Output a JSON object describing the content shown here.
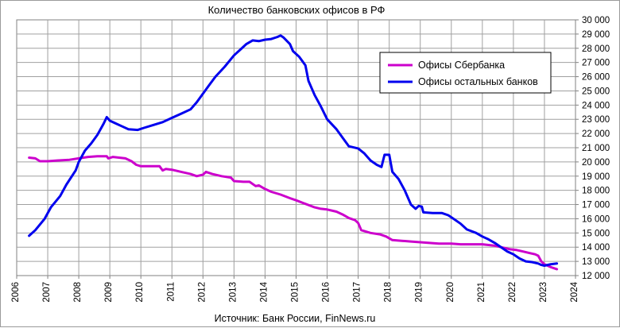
{
  "chart_data": {
    "type": "line",
    "title": "Количество банковских офисов в РФ",
    "source": "Источник: Банк России, FinNews.ru",
    "xlabel": "",
    "ylabel": "",
    "x_ticks": [
      "2006",
      "2007",
      "2008",
      "2009",
      "2010",
      "2011",
      "2012",
      "2013",
      "2014",
      "2015",
      "2016",
      "2017",
      "2018",
      "2019",
      "2020",
      "2021",
      "2022",
      "2023",
      "2024"
    ],
    "y_ticks": [
      "12 000",
      "13 000",
      "14 000",
      "15 000",
      "16 000",
      "17 000",
      "18 000",
      "19 000",
      "20 000",
      "21 000",
      "22 000",
      "23 000",
      "24 000",
      "25 000",
      "26 000",
      "27 000",
      "28 000",
      "29 000",
      "30 000"
    ],
    "xlim": [
      2006,
      2024
    ],
    "ylim": [
      12000,
      30000
    ],
    "y_axis_position": "right",
    "grid": true,
    "legend_position": "top-right",
    "series": [
      {
        "name": "Офисы Сбербанка",
        "color": "#cc00cc",
        "points": [
          [
            2006.4,
            20300
          ],
          [
            2006.6,
            20250
          ],
          [
            2006.75,
            20050
          ],
          [
            2007.0,
            20050
          ],
          [
            2007.3,
            20100
          ],
          [
            2007.7,
            20150
          ],
          [
            2008.0,
            20250
          ],
          [
            2008.3,
            20350
          ],
          [
            2008.6,
            20400
          ],
          [
            2008.9,
            20400
          ],
          [
            2008.95,
            20250
          ],
          [
            2009.1,
            20350
          ],
          [
            2009.5,
            20250
          ],
          [
            2009.7,
            20050
          ],
          [
            2009.85,
            19800
          ],
          [
            2010.0,
            19700
          ],
          [
            2010.3,
            19700
          ],
          [
            2010.6,
            19700
          ],
          [
            2010.7,
            19400
          ],
          [
            2010.8,
            19500
          ],
          [
            2011.0,
            19450
          ],
          [
            2011.3,
            19300
          ],
          [
            2011.6,
            19150
          ],
          [
            2011.8,
            19000
          ],
          [
            2012.0,
            19100
          ],
          [
            2012.1,
            19300
          ],
          [
            2012.3,
            19150
          ],
          [
            2012.6,
            19000
          ],
          [
            2012.9,
            18900
          ],
          [
            2013.0,
            18650
          ],
          [
            2013.3,
            18600
          ],
          [
            2013.5,
            18600
          ],
          [
            2013.7,
            18300
          ],
          [
            2013.8,
            18350
          ],
          [
            2014.0,
            18100
          ],
          [
            2014.2,
            17900
          ],
          [
            2014.5,
            17700
          ],
          [
            2014.8,
            17450
          ],
          [
            2015.0,
            17300
          ],
          [
            2015.3,
            17050
          ],
          [
            2015.6,
            16800
          ],
          [
            2015.8,
            16700
          ],
          [
            2016.0,
            16650
          ],
          [
            2016.3,
            16500
          ],
          [
            2016.5,
            16300
          ],
          [
            2016.7,
            16050
          ],
          [
            2016.9,
            15900
          ],
          [
            2017.0,
            15700
          ],
          [
            2017.1,
            15200
          ],
          [
            2017.4,
            15000
          ],
          [
            2017.7,
            14900
          ],
          [
            2017.9,
            14750
          ],
          [
            2018.1,
            14500
          ],
          [
            2018.4,
            14450
          ],
          [
            2018.7,
            14400
          ],
          [
            2019.0,
            14350
          ],
          [
            2019.3,
            14300
          ],
          [
            2019.6,
            14250
          ],
          [
            2020.0,
            14250
          ],
          [
            2020.3,
            14200
          ],
          [
            2020.6,
            14200
          ],
          [
            2021.0,
            14200
          ],
          [
            2021.2,
            14150
          ],
          [
            2021.4,
            14100
          ],
          [
            2021.6,
            14000
          ],
          [
            2021.9,
            13850
          ],
          [
            2022.1,
            13800
          ],
          [
            2022.3,
            13700
          ],
          [
            2022.5,
            13600
          ],
          [
            2022.7,
            13500
          ],
          [
            2022.8,
            13400
          ],
          [
            2022.9,
            13000
          ],
          [
            2023.0,
            12800
          ],
          [
            2023.2,
            12600
          ],
          [
            2023.4,
            12450
          ]
        ]
      },
      {
        "name": "Офисы остальных  банков",
        "color": "#0000ee",
        "points": [
          [
            2006.4,
            14800
          ],
          [
            2006.6,
            15200
          ],
          [
            2006.9,
            16000
          ],
          [
            2007.1,
            16800
          ],
          [
            2007.4,
            17600
          ],
          [
            2007.6,
            18400
          ],
          [
            2007.9,
            19400
          ],
          [
            2008.0,
            20000
          ],
          [
            2008.2,
            20800
          ],
          [
            2008.4,
            21300
          ],
          [
            2008.6,
            21900
          ],
          [
            2008.8,
            22700
          ],
          [
            2008.9,
            23150
          ],
          [
            2009.0,
            22900
          ],
          [
            2009.2,
            22700
          ],
          [
            2009.4,
            22500
          ],
          [
            2009.6,
            22300
          ],
          [
            2009.9,
            22250
          ],
          [
            2010.1,
            22400
          ],
          [
            2010.4,
            22600
          ],
          [
            2010.7,
            22800
          ],
          [
            2011.0,
            23100
          ],
          [
            2011.3,
            23400
          ],
          [
            2011.6,
            23700
          ],
          [
            2011.8,
            24200
          ],
          [
            2012.0,
            24800
          ],
          [
            2012.2,
            25400
          ],
          [
            2012.4,
            26000
          ],
          [
            2012.7,
            26700
          ],
          [
            2013.0,
            27500
          ],
          [
            2013.2,
            27900
          ],
          [
            2013.4,
            28300
          ],
          [
            2013.6,
            28550
          ],
          [
            2013.8,
            28500
          ],
          [
            2014.0,
            28600
          ],
          [
            2014.2,
            28650
          ],
          [
            2014.4,
            28800
          ],
          [
            2014.5,
            28900
          ],
          [
            2014.6,
            28750
          ],
          [
            2014.8,
            28300
          ],
          [
            2014.9,
            27800
          ],
          [
            2015.1,
            27400
          ],
          [
            2015.3,
            26800
          ],
          [
            2015.4,
            25700
          ],
          [
            2015.6,
            24700
          ],
          [
            2015.8,
            23900
          ],
          [
            2016.0,
            23000
          ],
          [
            2016.3,
            22300
          ],
          [
            2016.5,
            21700
          ],
          [
            2016.7,
            21100
          ],
          [
            2017.0,
            20950
          ],
          [
            2017.2,
            20600
          ],
          [
            2017.4,
            20100
          ],
          [
            2017.6,
            19800
          ],
          [
            2017.75,
            19650
          ],
          [
            2017.85,
            20500
          ],
          [
            2018.0,
            20500
          ],
          [
            2018.1,
            19300
          ],
          [
            2018.3,
            18800
          ],
          [
            2018.5,
            18000
          ],
          [
            2018.7,
            17000
          ],
          [
            2018.85,
            16700
          ],
          [
            2018.95,
            16900
          ],
          [
            2019.05,
            16850
          ],
          [
            2019.1,
            16450
          ],
          [
            2019.4,
            16400
          ],
          [
            2019.7,
            16400
          ],
          [
            2019.9,
            16250
          ],
          [
            2020.1,
            15950
          ],
          [
            2020.3,
            15650
          ],
          [
            2020.5,
            15250
          ],
          [
            2020.8,
            15000
          ],
          [
            2021.0,
            14750
          ],
          [
            2021.2,
            14550
          ],
          [
            2021.4,
            14300
          ],
          [
            2021.6,
            14000
          ],
          [
            2021.8,
            13700
          ],
          [
            2022.0,
            13500
          ],
          [
            2022.2,
            13200
          ],
          [
            2022.4,
            13000
          ],
          [
            2022.6,
            12950
          ],
          [
            2022.8,
            12850
          ],
          [
            2022.9,
            12750
          ],
          [
            2023.0,
            12700
          ],
          [
            2023.2,
            12800
          ],
          [
            2023.4,
            12850
          ]
        ]
      }
    ]
  }
}
